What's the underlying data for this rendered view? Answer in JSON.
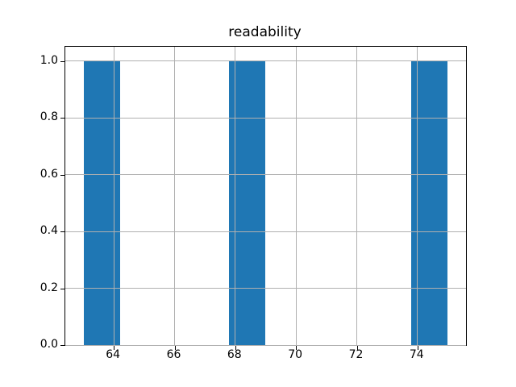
{
  "chart_data": {
    "type": "bar",
    "subtype": "histogram",
    "title": "readability",
    "xlabel": "",
    "ylabel": "",
    "bin_edges": [
      63.0,
      64.2,
      65.4,
      66.6,
      67.8,
      69.0,
      70.2,
      71.4,
      72.6,
      73.8,
      75.0
    ],
    "counts": [
      1,
      0,
      0,
      0,
      1,
      0,
      0,
      0,
      0,
      1
    ],
    "xlim": [
      62.4,
      75.6
    ],
    "ylim": [
      0,
      1.05
    ],
    "xticks": [
      64,
      66,
      68,
      70,
      72,
      74
    ],
    "xtick_labels": [
      "64",
      "66",
      "68",
      "70",
      "72",
      "74"
    ],
    "yticks": [
      0.0,
      0.2,
      0.4,
      0.6,
      0.8,
      1.0
    ],
    "ytick_labels": [
      "0.0",
      "0.2",
      "0.4",
      "0.6",
      "0.8",
      "1.0"
    ],
    "grid": true,
    "legend": "none",
    "bar_color": "#1f77b4",
    "grid_color": "#b0b0b0",
    "spine_color": "#000000",
    "text_color": "#000000",
    "background_color": "#ffffff"
  }
}
